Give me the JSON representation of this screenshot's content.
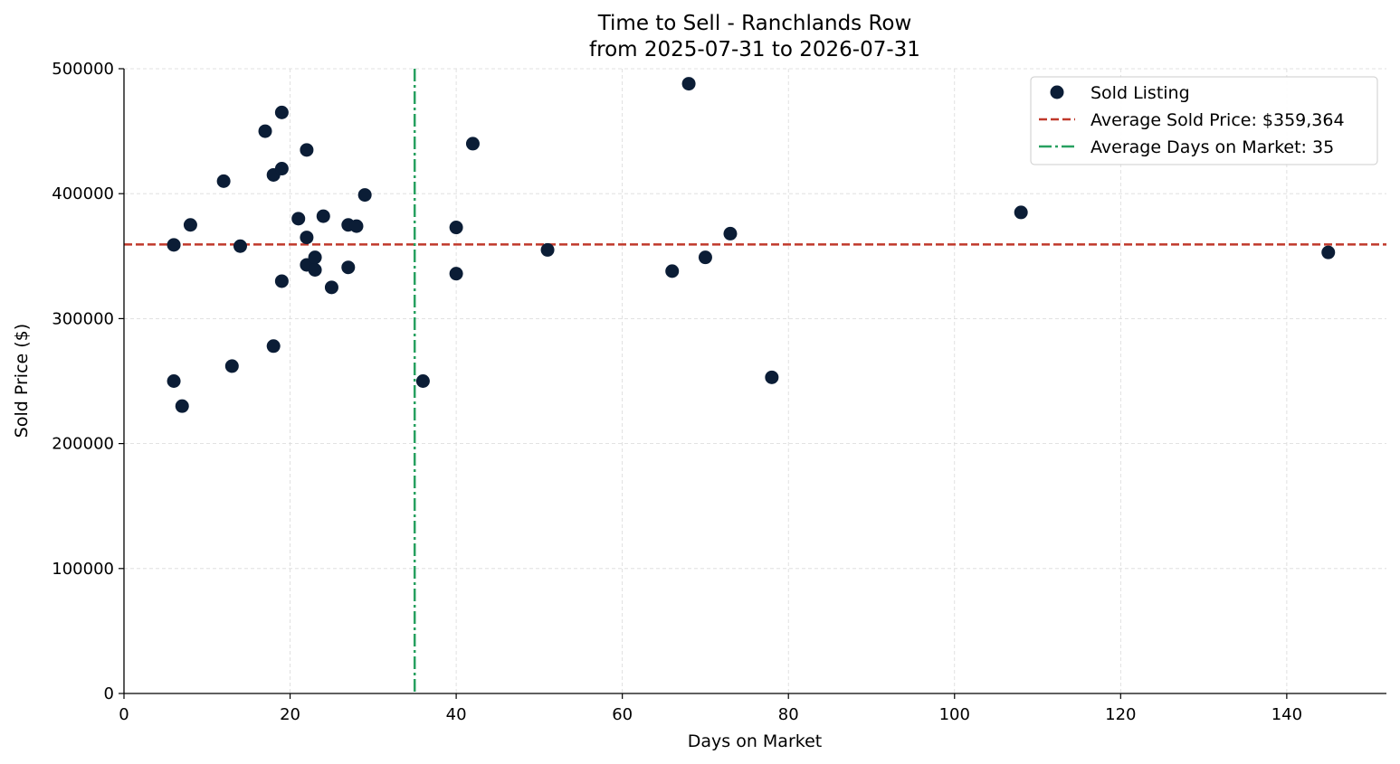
{
  "chart_data": {
    "type": "scatter",
    "title": "Time to Sell - Ranchlands Row",
    "subtitle": "from 2025-07-31 to 2026-07-31",
    "xlabel": "Days on Market",
    "ylabel": "Sold Price ($)",
    "xlim": [
      0,
      152
    ],
    "ylim": [
      0,
      500000
    ],
    "xticks": [
      0,
      20,
      40,
      60,
      80,
      100,
      120,
      140
    ],
    "yticks": [
      0,
      100000,
      200000,
      300000,
      400000,
      500000
    ],
    "xtick_labels": [
      "0",
      "20",
      "40",
      "60",
      "80",
      "100",
      "120",
      "140"
    ],
    "ytick_labels": [
      "0",
      "100000",
      "200000",
      "300000",
      "400000",
      "500000"
    ],
    "grid": true,
    "legend_position": "top-right",
    "colors": {
      "points": "#0b1d36",
      "avg_price_line": "#c0392b",
      "avg_days_line": "#27a060",
      "grid": "#d9d9d9"
    },
    "series": [
      {
        "name": "Sold Listing",
        "points": [
          {
            "x": 6,
            "y": 359000
          },
          {
            "x": 6,
            "y": 250000
          },
          {
            "x": 7,
            "y": 230000
          },
          {
            "x": 8,
            "y": 375000
          },
          {
            "x": 12,
            "y": 410000
          },
          {
            "x": 13,
            "y": 262000
          },
          {
            "x": 14,
            "y": 358000
          },
          {
            "x": 17,
            "y": 450000
          },
          {
            "x": 18,
            "y": 415000
          },
          {
            "x": 18,
            "y": 278000
          },
          {
            "x": 19,
            "y": 465000
          },
          {
            "x": 19,
            "y": 420000
          },
          {
            "x": 19,
            "y": 330000
          },
          {
            "x": 21,
            "y": 380000
          },
          {
            "x": 22,
            "y": 435000
          },
          {
            "x": 22,
            "y": 365000
          },
          {
            "x": 22,
            "y": 343000
          },
          {
            "x": 23,
            "y": 349000
          },
          {
            "x": 23,
            "y": 339000
          },
          {
            "x": 24,
            "y": 382000
          },
          {
            "x": 25,
            "y": 325000
          },
          {
            "x": 27,
            "y": 375000
          },
          {
            "x": 27,
            "y": 341000
          },
          {
            "x": 28,
            "y": 374000
          },
          {
            "x": 29,
            "y": 399000
          },
          {
            "x": 36,
            "y": 250000
          },
          {
            "x": 40,
            "y": 373000
          },
          {
            "x": 40,
            "y": 336000
          },
          {
            "x": 42,
            "y": 440000
          },
          {
            "x": 51,
            "y": 355000
          },
          {
            "x": 66,
            "y": 338000
          },
          {
            "x": 68,
            "y": 488000
          },
          {
            "x": 70,
            "y": 349000
          },
          {
            "x": 73,
            "y": 368000
          },
          {
            "x": 78,
            "y": 253000
          },
          {
            "x": 108,
            "y": 385000
          },
          {
            "x": 145,
            "y": 353000
          }
        ]
      }
    ],
    "reference_lines": [
      {
        "name": "Average Sold Price: $359,364",
        "orientation": "horizontal",
        "value": 359364,
        "style": "dashed"
      },
      {
        "name": "Average Days on Market: 35",
        "orientation": "vertical",
        "value": 35,
        "style": "dashdot"
      }
    ]
  }
}
